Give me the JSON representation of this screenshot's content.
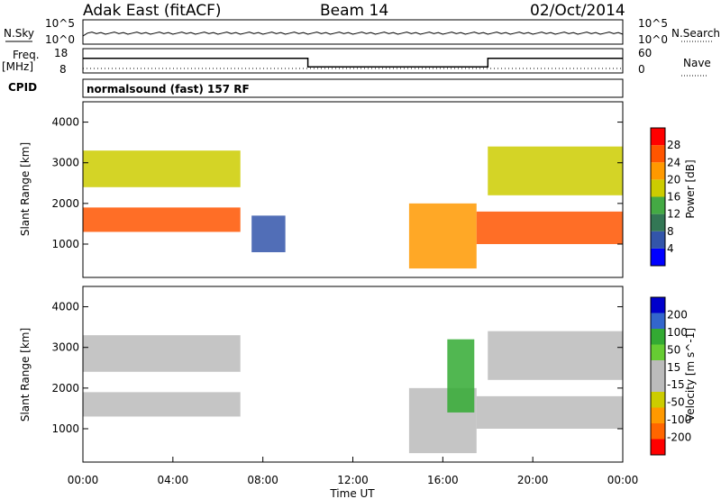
{
  "header": {
    "title": "Adak East (fitACF)",
    "beam": "Beam 14",
    "date": "02/Oct/2014"
  },
  "top_panels": {
    "nsky_label": "N.Sky",
    "nsearch_label": "N.Search",
    "freq_label": "Freq.",
    "freq_unit": "[MHz]",
    "nave_label": "Nave",
    "cpid_label": "CPID",
    "cpid_text": "normalsound (fast) 157 RF",
    "noise_left_ticks": [
      "10^5",
      "10^0"
    ],
    "noise_right_ticks": [
      "10^5",
      "10^0"
    ],
    "freq_left_ticks": [
      "18",
      "8"
    ],
    "freq_right_ticks": [
      "60",
      "0"
    ]
  },
  "colors": {
    "power_scale": [
      "#0000ff",
      "#3355aa",
      "#337755",
      "#44aa44",
      "#cccc00",
      "#ff9900",
      "#ff5500",
      "#ff0000"
    ],
    "velocity_scale": [
      "#ff0000",
      "#ff6600",
      "#ff9900",
      "#cccc00",
      "#bbbbbb",
      "#bbbbbb",
      "#66cc33",
      "#33aa33",
      "#3366cc",
      "#0000cc"
    ]
  },
  "chart_data": [
    {
      "type": "heatmap",
      "quantity": "Power",
      "colorbar_label": "Power [dB]",
      "colorbar_ticks": [
        "28",
        "24",
        "20",
        "16",
        "12",
        "8",
        "4"
      ],
      "ylabel": "Slant Range [km]",
      "yticks": [
        "4000",
        "3000",
        "2000",
        "1000"
      ],
      "ylim": [
        180,
        4500
      ],
      "xlim": [
        "00:00",
        "24:00"
      ],
      "grid": false,
      "regions": [
        {
          "t0": 0.0,
          "t1": 7.0,
          "r0": 1300,
          "r1": 1900,
          "level": 0.85
        },
        {
          "t0": 0.0,
          "t1": 7.0,
          "r0": 2400,
          "r1": 3300,
          "level": 0.6
        },
        {
          "t0": 7.5,
          "t1": 9.0,
          "r0": 800,
          "r1": 1700,
          "level": 0.1
        },
        {
          "t0": 14.5,
          "t1": 17.5,
          "r0": 400,
          "r1": 2000,
          "level": 0.75
        },
        {
          "t0": 17.5,
          "t1": 24.0,
          "r0": 1000,
          "r1": 1800,
          "level": 0.9
        },
        {
          "t0": 18.0,
          "t1": 24.0,
          "r0": 2200,
          "r1": 3400,
          "level": 0.55
        }
      ]
    },
    {
      "type": "heatmap",
      "quantity": "Velocity",
      "colorbar_label": "Velocity [m s^-1]",
      "colorbar_ticks": [
        "200",
        "100",
        "50",
        "15",
        "-15",
        "-50",
        "-100",
        "-200"
      ],
      "ylabel": "Slant Range [km]",
      "yticks": [
        "4000",
        "3000",
        "2000",
        "1000"
      ],
      "ylim": [
        180,
        4500
      ],
      "xlabel": "Time UT",
      "xticks": [
        "00:00",
        "04:00",
        "08:00",
        "12:00",
        "16:00",
        "20:00",
        "00:00"
      ],
      "xlim": [
        "00:00",
        "24:00"
      ],
      "grid": false,
      "regions": [
        {
          "t0": 0.0,
          "t1": 7.0,
          "r0": 1300,
          "r1": 1900,
          "level": 0.5
        },
        {
          "t0": 0.0,
          "t1": 7.0,
          "r0": 2400,
          "r1": 3300,
          "level": 0.5
        },
        {
          "t0": 14.5,
          "t1": 17.5,
          "r0": 400,
          "r1": 2000,
          "level": 0.5
        },
        {
          "t0": 16.2,
          "t1": 17.4,
          "r0": 1400,
          "r1": 3200,
          "level": 0.75
        },
        {
          "t0": 17.5,
          "t1": 24.0,
          "r0": 1000,
          "r1": 1800,
          "level": 0.5
        },
        {
          "t0": 18.0,
          "t1": 24.0,
          "r0": 2200,
          "r1": 3400,
          "level": 0.5
        }
      ]
    },
    {
      "type": "line",
      "quantity": "Frequency",
      "ylim": [
        8,
        18
      ],
      "segments": [
        {
          "t0": 0.0,
          "t1": 10.0,
          "value": 14
        },
        {
          "t0": 10.0,
          "t1": 18.0,
          "value": 10.5
        },
        {
          "t0": 18.0,
          "t1": 24.0,
          "value": 14
        }
      ]
    }
  ]
}
